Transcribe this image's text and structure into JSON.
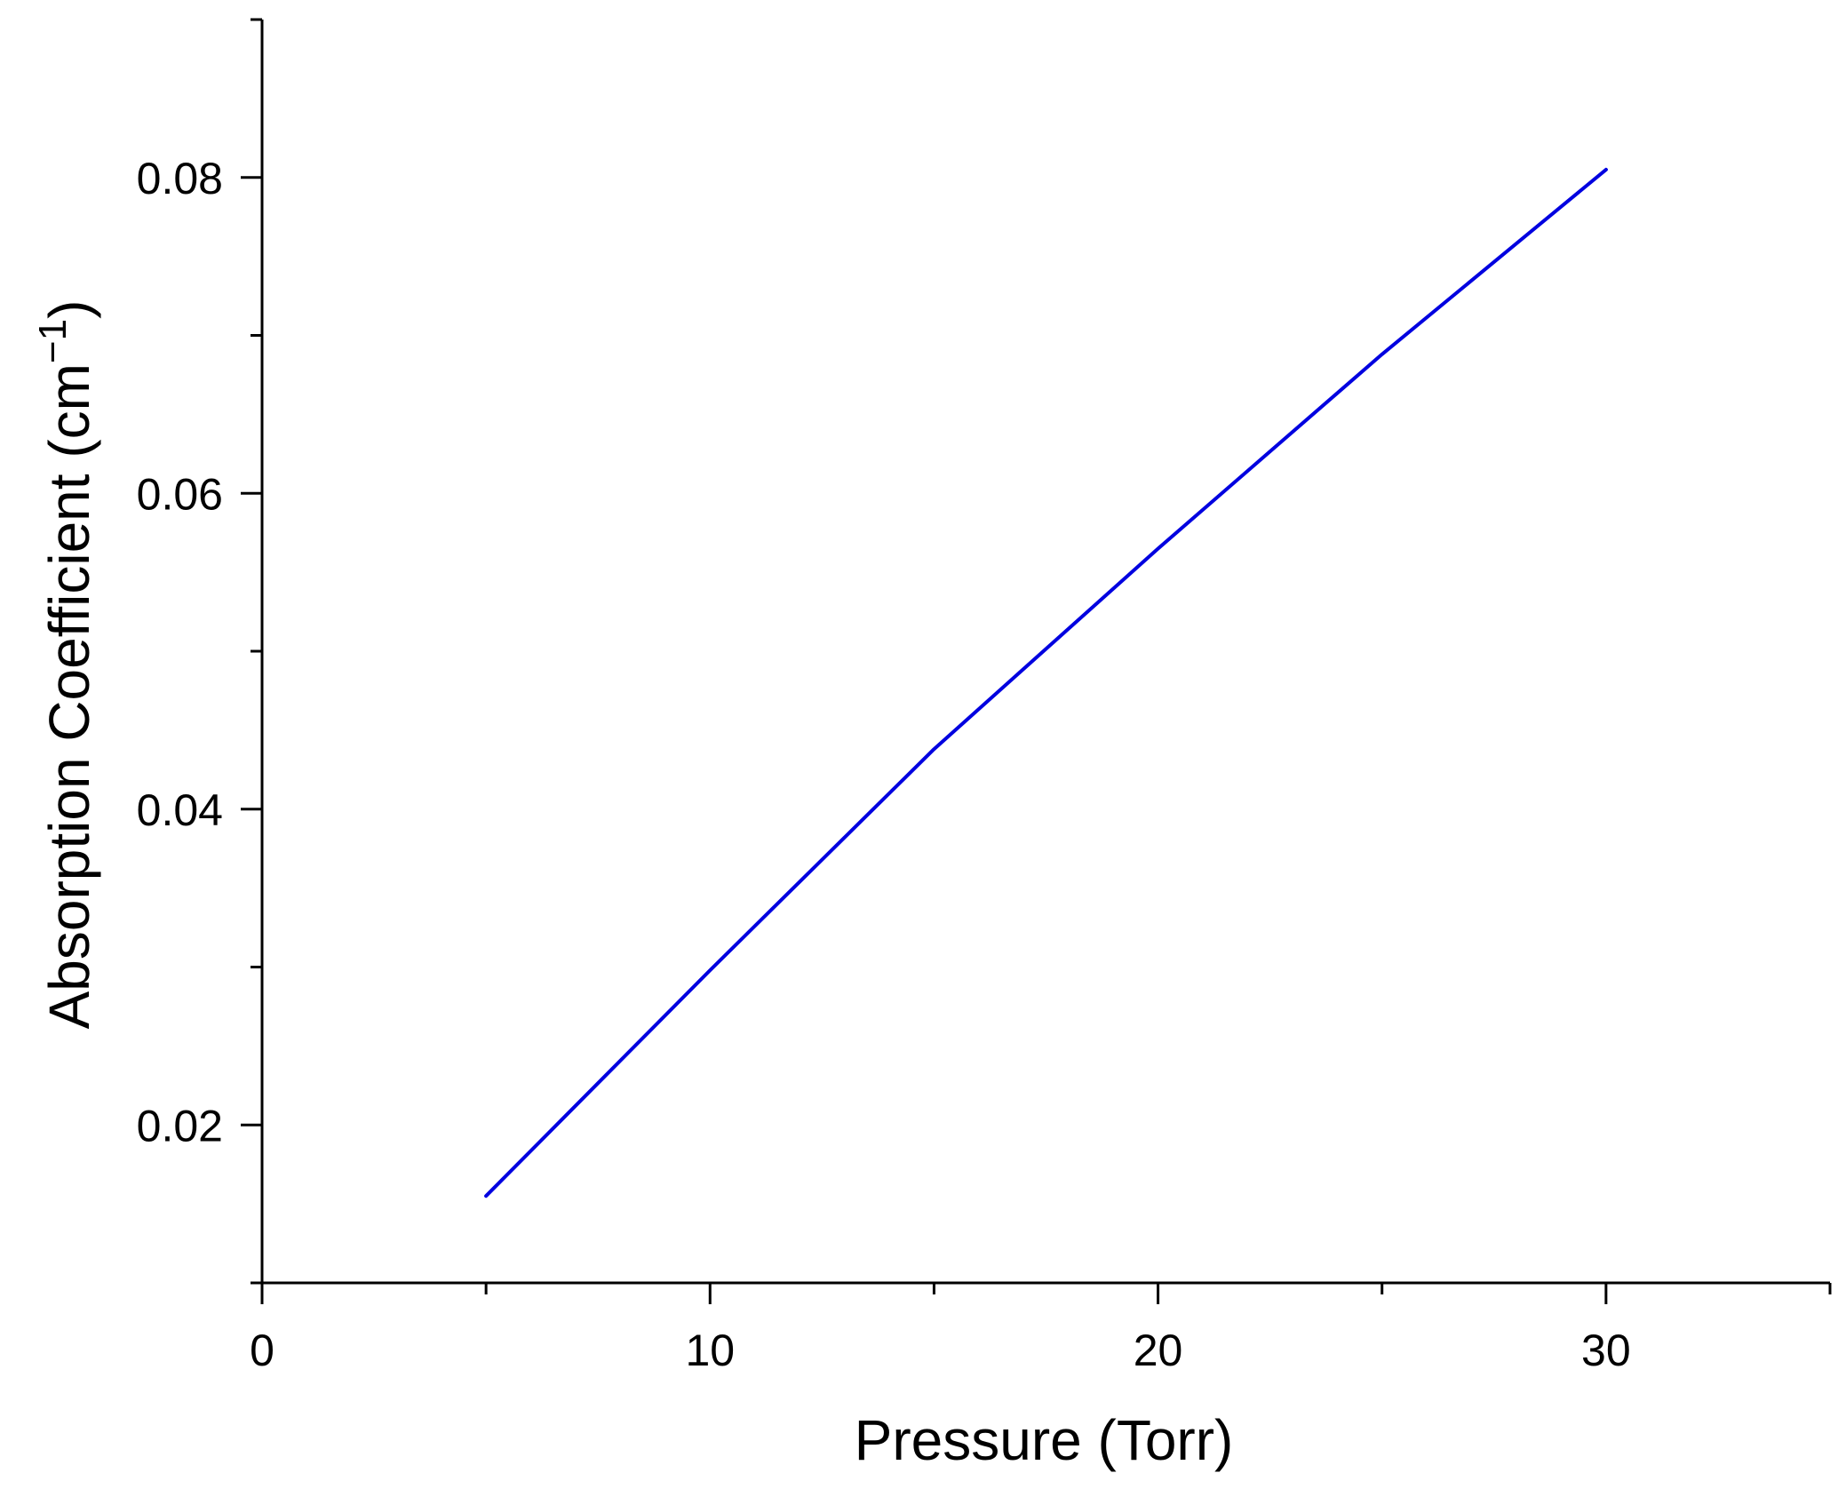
{
  "chart_data": {
    "type": "line",
    "title": "",
    "xlabel": "Pressure (Torr)",
    "ylabel_main": "Absorption Coefficient (cm",
    "ylabel_sup": "−1",
    "ylabel_close": ")",
    "xlim": [
      0,
      35
    ],
    "ylim": [
      0.01,
      0.09
    ],
    "x_major_ticks": [
      0,
      10,
      20,
      30
    ],
    "x_major_labels": [
      "0",
      "10",
      "20",
      "30"
    ],
    "x_minor_ticks": [
      5,
      15,
      25,
      35
    ],
    "y_major_ticks": [
      0.02,
      0.04,
      0.06,
      0.08
    ],
    "y_major_labels": [
      "0.02",
      "0.04",
      "0.06",
      "0.08"
    ],
    "y_minor_ticks": [
      0.01,
      0.03,
      0.05,
      0.07,
      0.09
    ],
    "grid": false,
    "series": [
      {
        "color": "#0000e0",
        "x": [
          5,
          10,
          15,
          20,
          25,
          30
        ],
        "y": [
          0.0155,
          0.0298,
          0.0438,
          0.0565,
          0.0688,
          0.0805
        ]
      }
    ]
  }
}
